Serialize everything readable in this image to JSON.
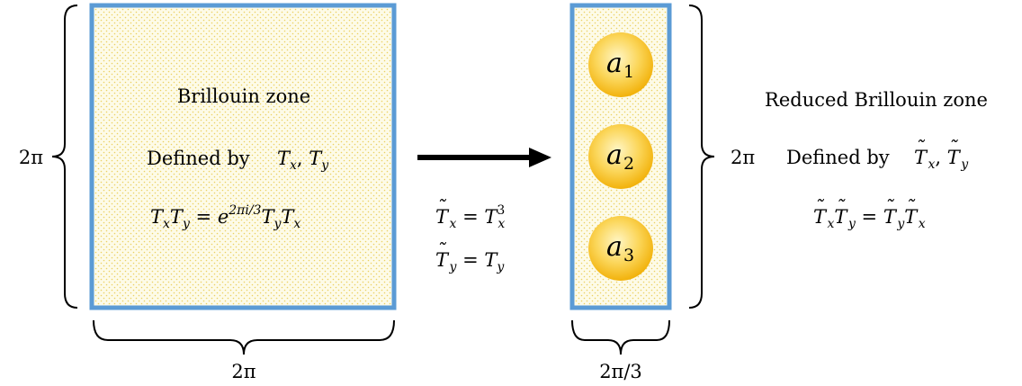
{
  "colors": {
    "zone_border": "#5b9bd5",
    "zone_fill": "#fdfbe8",
    "zone_dots": "#e8c94a",
    "orb_center": "#fff6c6",
    "orb_edge": "#f2b20c",
    "arrow": "#000000"
  },
  "left_zone": {
    "title": "Brillouin zone",
    "defined_prefix": "Defined by",
    "eq_rhs_exp": "2πi/3",
    "width_label": "2π",
    "height_label": "2π"
  },
  "transform": {
    "tx_rhs_power": "3"
  },
  "right_zone": {
    "title": "Reduced Brillouin zone",
    "defined_prefix": "Defined by",
    "width_label": "2π/3",
    "height_label": "2π",
    "orbitals": [
      {
        "symbol": "a",
        "index": "1"
      },
      {
        "symbol": "a",
        "index": "2"
      },
      {
        "symbol": "a",
        "index": "3"
      }
    ]
  }
}
